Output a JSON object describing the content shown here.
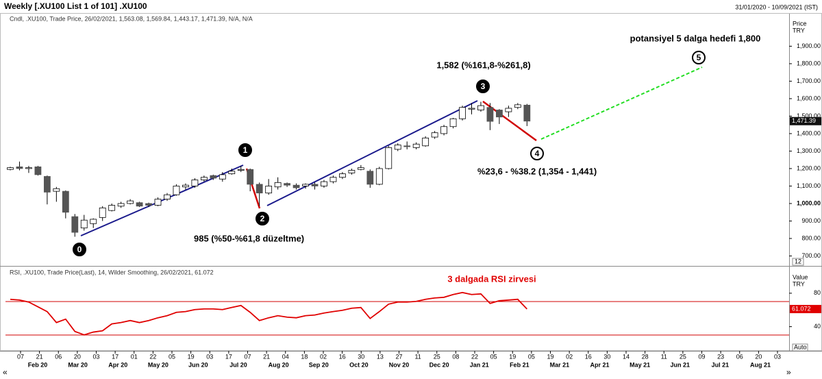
{
  "title": "Weekly [.XU100 List 1 of 101] .XU100",
  "date_range": "31/01/2020 - 10/09/2021 (IST)",
  "x_axis": {
    "days": [
      "07",
      "21",
      "06",
      "20",
      "03",
      "17",
      "01",
      "22",
      "05",
      "19",
      "03",
      "17",
      "07",
      "21",
      "04",
      "18",
      "02",
      "16",
      "30",
      "13",
      "27",
      "11",
      "25",
      "08",
      "22",
      "05",
      "19",
      "05",
      "19",
      "02",
      "16",
      "30",
      "14",
      "28",
      "11",
      "25",
      "09",
      "23",
      "06",
      "20",
      "03"
    ],
    "months": [
      "Feb 20",
      "Mar 20",
      "Apr 20",
      "May 20",
      "Jun 20",
      "Jul 20",
      "Aug 20",
      "Sep 20",
      "Oct 20",
      "Nov 20",
      "Dec 20",
      "Jan 21",
      "Feb 21",
      "Mar 21",
      "Apr 21",
      "May 21",
      "Jun 21",
      "Jul 21",
      "Aug 21"
    ]
  },
  "controls": {
    "scale_box": "12",
    "auto": "Auto"
  },
  "chart_data": [
    {
      "type": "candlestick",
      "legend": "Cndl, .XU100, Trade Price, 26/02/2021, 1,563.08, 1,569.84, 1,443.17, 1,471.39, N/A, N/A",
      "axis_label": [
        "Price",
        "TRY"
      ],
      "ylim": [
        643,
        2086
      ],
      "yticks": [
        {
          "value": 700,
          "label": "700.00"
        },
        {
          "value": 800,
          "label": "800.00"
        },
        {
          "value": 900,
          "label": "900.00"
        },
        {
          "value": 1000,
          "label": "1,000.00"
        },
        {
          "value": 1100,
          "label": "1,100.00"
        },
        {
          "value": 1200,
          "label": "1,200.00"
        },
        {
          "value": 1300,
          "label": "1,300.00"
        },
        {
          "value": 1400,
          "label": "1,400.00"
        },
        {
          "value": 1500,
          "label": "1,500.00"
        },
        {
          "value": 1600,
          "label": "1,600.00"
        },
        {
          "value": 1700,
          "label": "1,700.00"
        },
        {
          "value": 1800,
          "label": "1,800.00"
        },
        {
          "value": 1900,
          "label": "1,900.00"
        }
      ],
      "series": [
        {
          "name": ".XU100",
          "open": [
            1195,
            1210,
            1200,
            1210,
            1155,
            1070,
            1070,
            925,
            860,
            885,
            920,
            960,
            985,
            1000,
            1005,
            1000,
            990,
            1025,
            1050,
            1095,
            1100,
            1135,
            1160,
            1140,
            1170,
            1190,
            1195,
            1110,
            1060,
            1095,
            1115,
            1105,
            1100,
            1110,
            1100,
            1125,
            1150,
            1175,
            1195,
            1185,
            1110,
            1200,
            1310,
            1330,
            1320,
            1330,
            1380,
            1400,
            1440,
            1485,
            1540,
            1535,
            1550,
            1535,
            1525,
            1550,
            1563.08
          ],
          "high": [
            1210,
            1240,
            1215,
            1215,
            1160,
            1095,
            1075,
            940,
            935,
            915,
            985,
            1000,
            1010,
            1025,
            1010,
            1005,
            1035,
            1060,
            1110,
            1115,
            1145,
            1160,
            1165,
            1180,
            1200,
            1215,
            1200,
            1120,
            1140,
            1150,
            1120,
            1115,
            1115,
            1120,
            1135,
            1160,
            1180,
            1200,
            1220,
            1195,
            1210,
            1330,
            1345,
            1355,
            1350,
            1385,
            1415,
            1450,
            1490,
            1560,
            1575,
            1582,
            1575,
            1540,
            1560,
            1575,
            1569.84
          ],
          "low": [
            1190,
            1190,
            1175,
            1160,
            995,
            1010,
            915,
            810,
            845,
            860,
            900,
            955,
            975,
            995,
            980,
            980,
            985,
            1015,
            1045,
            1080,
            1090,
            1125,
            1135,
            1125,
            1165,
            1180,
            1070,
            985,
            1050,
            1080,
            1095,
            1080,
            1085,
            1080,
            1090,
            1115,
            1140,
            1165,
            1190,
            1090,
            1105,
            1195,
            1300,
            1310,
            1310,
            1325,
            1370,
            1390,
            1430,
            1475,
            1510,
            1525,
            1420,
            1455,
            1495,
            1540,
            1443.17
          ],
          "close": [
            1205,
            1200,
            1205,
            1165,
            1065,
            1085,
            950,
            835,
            905,
            910,
            975,
            990,
            1000,
            1015,
            985,
            990,
            1025,
            1050,
            1100,
            1105,
            1135,
            1150,
            1145,
            1165,
            1185,
            1195,
            1110,
            1060,
            1100,
            1120,
            1105,
            1090,
            1110,
            1100,
            1125,
            1150,
            1170,
            1190,
            1205,
            1110,
            1200,
            1320,
            1335,
            1325,
            1340,
            1375,
            1405,
            1440,
            1485,
            1550,
            1545,
            1560,
            1470,
            1495,
            1545,
            1565,
            1471.39
          ]
        }
      ],
      "last_label": "1,471.39",
      "annotations": [
        "potansiyel 5 dalga hedefi 1,800",
        "1,582 (%161,8-%261,8)",
        "%23,6 - %38.2 (1,354 - 1,441)",
        "985  (%50-%61,8 düzeltme)"
      ],
      "waves": [
        "0",
        "1",
        "2",
        "3",
        "4",
        "5"
      ]
    },
    {
      "type": "line",
      "legend": "RSI, .XU100, Trade Price(Last), 14, Wilder Smoothing, 26/02/2021, 61.072",
      "axis_label": [
        "Value",
        "TRY"
      ],
      "ylim": [
        11,
        111
      ],
      "yticks": [
        40,
        80
      ],
      "hlines": [
        30,
        70
      ],
      "hline_color": "#d00000",
      "series": [
        {
          "name": "RSI",
          "color": "#e00000",
          "values": [
            72.7,
            71.8,
            69.4,
            63.7,
            58.0,
            44.9,
            49.0,
            34.3,
            30.2,
            33.5,
            35.1,
            43.3,
            44.9,
            47.3,
            44.9,
            47.3,
            50.6,
            53.1,
            57.1,
            58.0,
            60.4,
            61.2,
            61.2,
            60.4,
            62.9,
            65.3,
            57.1,
            47.3,
            50.6,
            53.1,
            51.4,
            50.6,
            53.1,
            53.9,
            56.3,
            58.0,
            59.6,
            62.0,
            62.9,
            49.8,
            58.0,
            66.9,
            69.4,
            69.4,
            70.2,
            72.7,
            74.3,
            75.1,
            78.4,
            80.8,
            78.4,
            79.2,
            67.8,
            71.0,
            71.8,
            72.7,
            61.072
          ]
        }
      ],
      "last_label": "61.072",
      "annotations": [
        "3 dalgada RSI zirvesi"
      ]
    }
  ]
}
